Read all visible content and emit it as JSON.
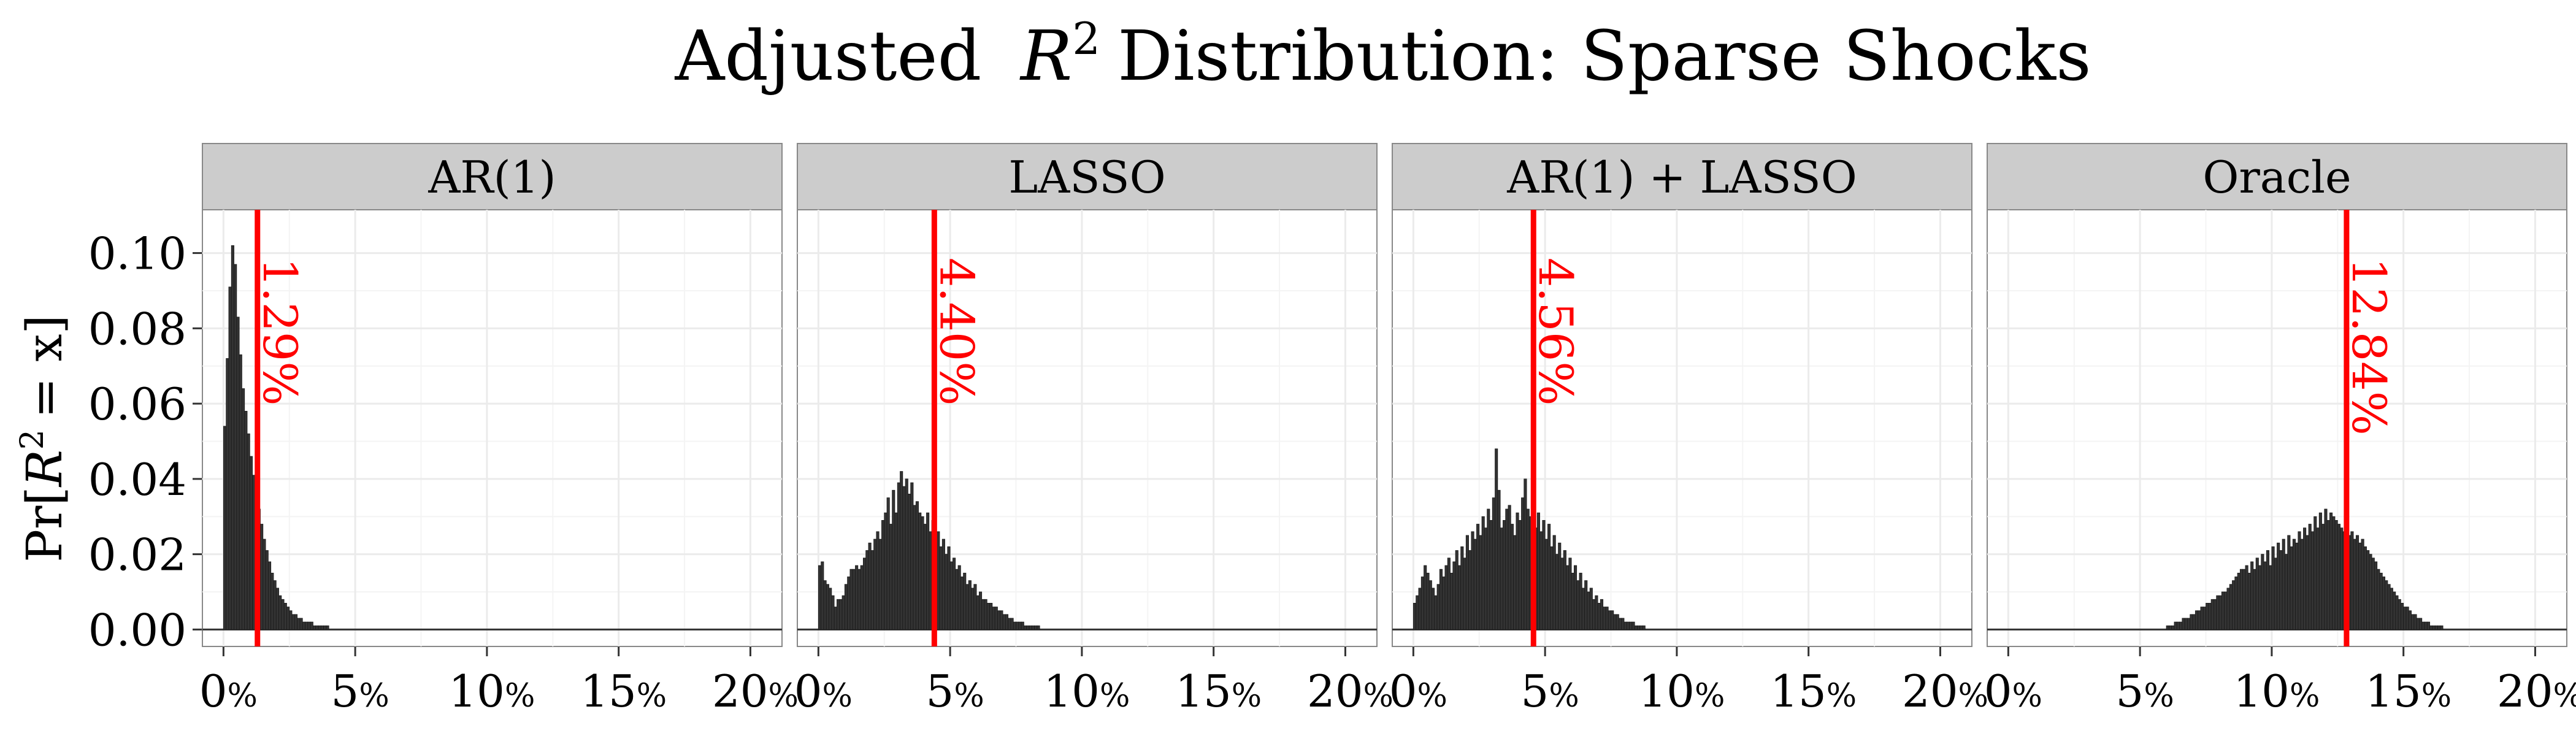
{
  "chart_data": {
    "type": "histogram",
    "title_prefix": "Adjusted",
    "title_var": "R",
    "title_sup": "2",
    "title_suffix": "Distribution: Sparse Shocks",
    "ylabel_prefix": "Pr[",
    "ylabel_var": "R",
    "ylabel_sup": "2",
    "ylabel_suffix": "= x]",
    "xlim": [
      -0.8,
      21.2
    ],
    "ylim": [
      -0.0045,
      0.1115
    ],
    "x_ticks": [
      0,
      5,
      10,
      15,
      20
    ],
    "x_tick_labels": [
      "0%",
      "5%",
      "10%",
      "15%",
      "20%"
    ],
    "y_ticks": [
      0,
      0.02,
      0.04,
      0.06,
      0.08,
      0.1
    ],
    "y_tick_labels": [
      "0.00",
      "0.02",
      "0.04",
      "0.06",
      "0.08",
      "0.10"
    ],
    "bin_width": 0.1,
    "panels": [
      {
        "name": "AR(1)",
        "mean": 1.29,
        "mean_label": "1.29%",
        "bin_start": 0,
        "values": [
          0.054,
          0.072,
          0.091,
          0.102,
          0.097,
          0.083,
          0.073,
          0.064,
          0.058,
          0.052,
          0.046,
          0.041,
          0.037,
          0.032,
          0.028,
          0.024,
          0.021,
          0.018,
          0.015,
          0.013,
          0.011,
          0.009,
          0.008,
          0.007,
          0.006,
          0.005,
          0.004,
          0.004,
          0.003,
          0.003,
          0.002,
          0.002,
          0.002,
          0.002,
          0.001,
          0.001,
          0.001,
          0.001,
          0.001,
          0.001
        ]
      },
      {
        "name": "LASSO",
        "mean": 4.4,
        "mean_label": "4.40%",
        "bin_start": 0,
        "values": [
          0.017,
          0.018,
          0.013,
          0.012,
          0.011,
          0.009,
          0.006,
          0.008,
          0.008,
          0.009,
          0.012,
          0.014,
          0.016,
          0.016,
          0.017,
          0.016,
          0.017,
          0.019,
          0.021,
          0.023,
          0.021,
          0.024,
          0.026,
          0.024,
          0.029,
          0.031,
          0.035,
          0.028,
          0.037,
          0.031,
          0.039,
          0.042,
          0.038,
          0.04,
          0.036,
          0.039,
          0.033,
          0.034,
          0.031,
          0.03,
          0.028,
          0.031,
          0.026,
          0.029,
          0.024,
          0.026,
          0.022,
          0.024,
          0.02,
          0.022,
          0.018,
          0.019,
          0.016,
          0.017,
          0.014,
          0.015,
          0.012,
          0.013,
          0.011,
          0.012,
          0.009,
          0.01,
          0.008,
          0.008,
          0.007,
          0.007,
          0.006,
          0.006,
          0.005,
          0.005,
          0.004,
          0.004,
          0.003,
          0.003,
          0.002,
          0.002,
          0.002,
          0.002,
          0.001,
          0.001,
          0.001,
          0.001,
          0.001,
          0.001
        ]
      },
      {
        "name": "AR(1) + LASSO",
        "mean": 4.56,
        "mean_label": "4.56%",
        "bin_start": 0,
        "values": [
          0.007,
          0.009,
          0.011,
          0.014,
          0.017,
          0.015,
          0.013,
          0.011,
          0.009,
          0.012,
          0.016,
          0.014,
          0.017,
          0.019,
          0.015,
          0.018,
          0.021,
          0.017,
          0.022,
          0.019,
          0.025,
          0.021,
          0.026,
          0.024,
          0.028,
          0.025,
          0.03,
          0.027,
          0.032,
          0.029,
          0.035,
          0.048,
          0.037,
          0.027,
          0.029,
          0.032,
          0.033,
          0.028,
          0.025,
          0.031,
          0.029,
          0.035,
          0.04,
          0.032,
          0.03,
          0.034,
          0.027,
          0.031,
          0.026,
          0.029,
          0.024,
          0.028,
          0.022,
          0.025,
          0.02,
          0.023,
          0.019,
          0.021,
          0.017,
          0.019,
          0.015,
          0.017,
          0.013,
          0.015,
          0.011,
          0.013,
          0.01,
          0.011,
          0.008,
          0.009,
          0.007,
          0.008,
          0.006,
          0.006,
          0.005,
          0.005,
          0.004,
          0.004,
          0.003,
          0.003,
          0.002,
          0.002,
          0.002,
          0.002,
          0.001,
          0.001,
          0.001,
          0.001
        ]
      },
      {
        "name": "Oracle",
        "mean": 12.84,
        "mean_label": "12.84%",
        "bin_start": 6.0,
        "values": [
          0.001,
          0.001,
          0.001,
          0.002,
          0.002,
          0.002,
          0.003,
          0.003,
          0.003,
          0.004,
          0.004,
          0.005,
          0.005,
          0.006,
          0.006,
          0.007,
          0.007,
          0.008,
          0.008,
          0.009,
          0.009,
          0.01,
          0.01,
          0.011,
          0.012,
          0.013,
          0.014,
          0.015,
          0.016,
          0.016,
          0.017,
          0.015,
          0.018,
          0.016,
          0.019,
          0.017,
          0.02,
          0.018,
          0.021,
          0.017,
          0.022,
          0.019,
          0.023,
          0.021,
          0.024,
          0.02,
          0.025,
          0.022,
          0.024,
          0.023,
          0.026,
          0.024,
          0.027,
          0.025,
          0.028,
          0.026,
          0.03,
          0.027,
          0.031,
          0.028,
          0.032,
          0.029,
          0.031,
          0.03,
          0.029,
          0.028,
          0.027,
          0.026,
          0.028,
          0.025,
          0.026,
          0.024,
          0.025,
          0.023,
          0.024,
          0.022,
          0.021,
          0.02,
          0.019,
          0.018,
          0.016,
          0.015,
          0.014,
          0.013,
          0.012,
          0.011,
          0.01,
          0.009,
          0.008,
          0.007,
          0.006,
          0.006,
          0.005,
          0.004,
          0.004,
          0.003,
          0.003,
          0.002,
          0.002,
          0.002,
          0.001,
          0.001,
          0.001,
          0.001,
          0.001
        ]
      }
    ],
    "colors": {
      "bar": "#333333",
      "mean_line": "#ff0000",
      "strip_bg": "#cccccc",
      "grid_major": "#ebebeb",
      "grid_minor": "#f4f4f4"
    }
  }
}
